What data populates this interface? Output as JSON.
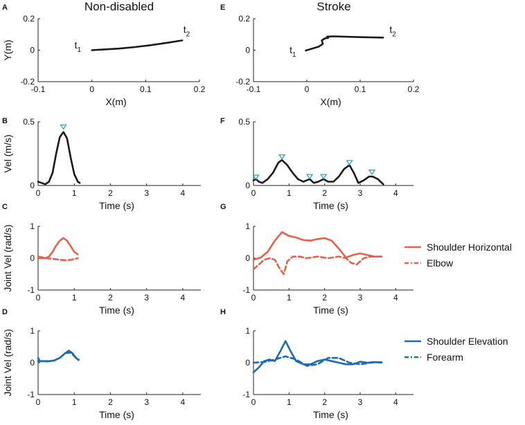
{
  "figure": {
    "col_titles": [
      "Non-disabled",
      "Stroke"
    ]
  },
  "colors": {
    "black": "#1a1a1a",
    "shoulder_horizontal": "#e8604a",
    "shoulder_elevation": "#1f6bb0",
    "peak_marker": "#2e9fd6"
  },
  "legend": {
    "horizontal": [
      "Shoulder Horizontal",
      "Elbow"
    ],
    "elevation": [
      "Shoulder Elevation",
      "Forearm"
    ]
  },
  "chart_data": [
    {
      "panel": "A",
      "type": "line",
      "xlabel": "X(m)",
      "ylabel": "Y(m)",
      "xlim": [
        -0.1,
        0.2
      ],
      "ylim": [
        -0.2,
        0.2
      ],
      "xticks": [
        "-0.1",
        "0",
        "0.1",
        "0.2"
      ],
      "yticks": [
        "-0.2",
        "0",
        "0.2"
      ],
      "annotations": [
        {
          "base": "t",
          "sub": "1",
          "x": -0.02,
          "y": 0.01
        },
        {
          "base": "t",
          "sub": "2",
          "x": 0.17,
          "y": 0.11
        }
      ],
      "series": [
        {
          "style": "solid",
          "color": "black",
          "x": [
            0.0,
            0.02,
            0.05,
            0.08,
            0.11,
            0.14,
            0.168
          ],
          "y": [
            0.0,
            0.004,
            0.01,
            0.02,
            0.032,
            0.047,
            0.062
          ]
        }
      ]
    },
    {
      "panel": "E",
      "type": "line",
      "xlabel": "X(m)",
      "ylabel": "",
      "xlim": [
        -0.1,
        0.2
      ],
      "ylim": [
        -0.2,
        0.2
      ],
      "xticks": [
        "-0.1",
        "0",
        "0.1",
        "0.2"
      ],
      "yticks": [
        "-0.2",
        "0",
        "0.2"
      ],
      "annotations": [
        {
          "base": "t",
          "sub": "1",
          "x": -0.02,
          "y": -0.02
        },
        {
          "base": "t",
          "sub": "2",
          "x": 0.155,
          "y": 0.11
        }
      ],
      "series": [
        {
          "style": "solid",
          "color": "black",
          "x": [
            -0.002,
            0.01,
            0.022,
            0.03,
            0.028,
            0.034,
            0.04,
            0.038,
            0.05,
            0.08,
            0.11,
            0.143
          ],
          "y": [
            -0.002,
            0.01,
            0.022,
            0.04,
            0.062,
            0.075,
            0.078,
            0.086,
            0.088,
            0.085,
            0.082,
            0.08
          ]
        }
      ]
    },
    {
      "panel": "B",
      "type": "line",
      "xlabel": "Time (s)",
      "ylabel": "Vel (m/s)",
      "xlim": [
        0,
        4.5
      ],
      "ylim": [
        0,
        0.5
      ],
      "xticks": [
        "0",
        "1",
        "2",
        "3",
        "4"
      ],
      "yticks": [
        "0",
        "0.5"
      ],
      "peaks": {
        "x": [
          0.7
        ],
        "y": [
          0.46
        ]
      },
      "series": [
        {
          "style": "solid",
          "color": "black",
          "x": [
            0.0,
            0.1,
            0.2,
            0.3,
            0.4,
            0.5,
            0.6,
            0.7,
            0.8,
            0.9,
            1.0,
            1.1,
            1.15
          ],
          "y": [
            0.03,
            0.02,
            0.01,
            0.03,
            0.1,
            0.25,
            0.38,
            0.42,
            0.37,
            0.22,
            0.09,
            0.03,
            0.02
          ]
        }
      ]
    },
    {
      "panel": "F",
      "type": "line",
      "xlabel": "Time (s)",
      "ylabel": "",
      "xlim": [
        0,
        4.5
      ],
      "ylim": [
        0,
        0.5
      ],
      "xticks": [
        "0",
        "1",
        "2",
        "3",
        "4"
      ],
      "yticks": [
        "0",
        "0.5"
      ],
      "peaks": {
        "x": [
          0.07,
          0.8,
          1.58,
          1.97,
          2.7,
          3.33
        ],
        "y": [
          0.065,
          0.225,
          0.07,
          0.07,
          0.18,
          0.105
        ]
      },
      "series": [
        {
          "style": "solid",
          "color": "black",
          "x": [
            0.0,
            0.07,
            0.15,
            0.25,
            0.4,
            0.55,
            0.7,
            0.8,
            0.95,
            1.1,
            1.25,
            1.4,
            1.58,
            1.7,
            1.82,
            1.97,
            2.1,
            2.25,
            2.4,
            2.55,
            2.7,
            2.82,
            2.95,
            3.1,
            3.25,
            3.35,
            3.5,
            3.65
          ],
          "y": [
            0.04,
            0.05,
            0.03,
            0.02,
            0.05,
            0.1,
            0.18,
            0.2,
            0.16,
            0.1,
            0.05,
            0.03,
            0.05,
            0.02,
            0.03,
            0.05,
            0.03,
            0.03,
            0.07,
            0.13,
            0.16,
            0.1,
            0.02,
            0.04,
            0.07,
            0.07,
            0.05,
            0.01
          ]
        }
      ]
    },
    {
      "panel": "C",
      "type": "line",
      "xlabel": "Time (s)",
      "ylabel": "Joint Vel (rad/s)",
      "xlim": [
        0,
        4.5
      ],
      "ylim": [
        -1,
        1
      ],
      "xticks": [
        "0",
        "1",
        "2",
        "3",
        "4"
      ],
      "yticks": [
        "-1",
        "0",
        "1"
      ],
      "series": [
        {
          "name": "Shoulder Horizontal",
          "style": "solid",
          "color": "shoulder_horizontal",
          "x": [
            0.0,
            0.1,
            0.2,
            0.3,
            0.4,
            0.5,
            0.6,
            0.7,
            0.8,
            0.9,
            1.0,
            1.1
          ],
          "y": [
            0.05,
            0.03,
            0.0,
            0.05,
            0.2,
            0.4,
            0.55,
            0.63,
            0.55,
            0.38,
            0.2,
            0.12
          ]
        },
        {
          "name": "Elbow",
          "style": "dashed",
          "color": "shoulder_horizontal",
          "x": [
            0.0,
            0.2,
            0.4,
            0.6,
            0.8,
            1.0,
            1.1
          ],
          "y": [
            0.0,
            0.0,
            -0.02,
            -0.05,
            -0.07,
            -0.03,
            0.0
          ]
        }
      ]
    },
    {
      "panel": "G",
      "type": "line",
      "xlabel": "Time (s)",
      "ylabel": "",
      "xlim": [
        0,
        4.5
      ],
      "ylim": [
        -1,
        1
      ],
      "xticks": [
        "0",
        "1",
        "2",
        "3",
        "4"
      ],
      "yticks": [
        "-1",
        "0",
        "1"
      ],
      "series": [
        {
          "name": "Shoulder Horizontal",
          "style": "solid",
          "color": "shoulder_horizontal",
          "x": [
            0.0,
            0.2,
            0.4,
            0.6,
            0.8,
            1.0,
            1.2,
            1.4,
            1.6,
            1.8,
            2.0,
            2.2,
            2.4,
            2.6,
            2.8,
            3.0,
            3.2,
            3.4,
            3.6
          ],
          "y": [
            -0.05,
            0.02,
            0.2,
            0.55,
            0.82,
            0.7,
            0.65,
            0.57,
            0.55,
            0.6,
            0.63,
            0.55,
            0.3,
            0.02,
            0.1,
            0.15,
            0.1,
            0.05,
            0.05
          ]
        },
        {
          "name": "Elbow",
          "style": "dashed",
          "color": "shoulder_horizontal",
          "x": [
            0.0,
            0.15,
            0.3,
            0.45,
            0.6,
            0.75,
            0.85,
            0.95,
            1.1,
            1.3,
            1.5,
            1.8,
            2.1,
            2.4,
            2.6,
            2.75,
            2.9,
            3.1,
            3.3,
            3.6
          ],
          "y": [
            -0.35,
            -0.2,
            -0.05,
            0.0,
            -0.05,
            -0.35,
            -0.5,
            -0.1,
            0.05,
            0.05,
            0.0,
            0.05,
            0.0,
            0.05,
            0.0,
            -0.15,
            -0.2,
            0.0,
            0.05,
            0.05
          ]
        }
      ]
    },
    {
      "panel": "D",
      "type": "line",
      "xlabel": "Time (s)",
      "ylabel": "Joint Vel (rad/s)",
      "xlim": [
        0,
        4.5
      ],
      "ylim": [
        -1,
        1
      ],
      "xticks": [
        "0",
        "1",
        "2",
        "3",
        "4"
      ],
      "yticks": [
        "-1",
        "0",
        "1"
      ],
      "series": [
        {
          "name": "Shoulder Elevation",
          "style": "solid",
          "color": "shoulder_elevation",
          "x": [
            0.0,
            0.05,
            0.15,
            0.3,
            0.45,
            0.6,
            0.75,
            0.85,
            0.95,
            1.05,
            1.12
          ],
          "y": [
            0.15,
            0.05,
            0.05,
            0.05,
            0.07,
            0.15,
            0.3,
            0.38,
            0.3,
            0.15,
            0.08
          ]
        },
        {
          "name": "Forearm",
          "style": "dashed",
          "color": "shoulder_elevation",
          "x": [
            0.0,
            0.2,
            0.4,
            0.6,
            0.75,
            0.9,
            1.05,
            1.12
          ],
          "y": [
            0.05,
            0.04,
            0.05,
            0.15,
            0.3,
            0.32,
            0.15,
            0.1
          ]
        }
      ]
    },
    {
      "panel": "H",
      "type": "line",
      "xlabel": "Time (s)",
      "ylabel": "",
      "xlim": [
        0,
        4.5
      ],
      "ylim": [
        -1,
        1
      ],
      "xticks": [
        "0",
        "1",
        "2",
        "3",
        "4"
      ],
      "yticks": [
        "-1",
        "0",
        "1"
      ],
      "series": [
        {
          "name": "Shoulder Elevation",
          "style": "solid",
          "color": "shoulder_elevation",
          "x": [
            0.0,
            0.15,
            0.3,
            0.45,
            0.6,
            0.75,
            0.9,
            1.05,
            1.2,
            1.4,
            1.6,
            1.8,
            2.0,
            2.2,
            2.4,
            2.6,
            2.8,
            3.0,
            3.2,
            3.4,
            3.6
          ],
          "y": [
            -0.3,
            -0.15,
            0.05,
            0.1,
            0.05,
            0.35,
            0.68,
            0.35,
            0.05,
            -0.05,
            -0.05,
            0.05,
            0.1,
            0.05,
            0.0,
            -0.05,
            -0.05,
            0.03,
            0.0,
            0.02,
            0.0
          ]
        },
        {
          "name": "Forearm",
          "style": "dashed",
          "color": "shoulder_elevation",
          "x": [
            0.0,
            0.3,
            0.6,
            0.9,
            1.2,
            1.5,
            1.8,
            2.1,
            2.4,
            2.7,
            3.0,
            3.3,
            3.6
          ],
          "y": [
            0.0,
            0.02,
            0.1,
            0.2,
            0.1,
            -0.1,
            -0.05,
            0.15,
            0.15,
            0.0,
            -0.05,
            0.0,
            0.02
          ]
        }
      ]
    }
  ]
}
